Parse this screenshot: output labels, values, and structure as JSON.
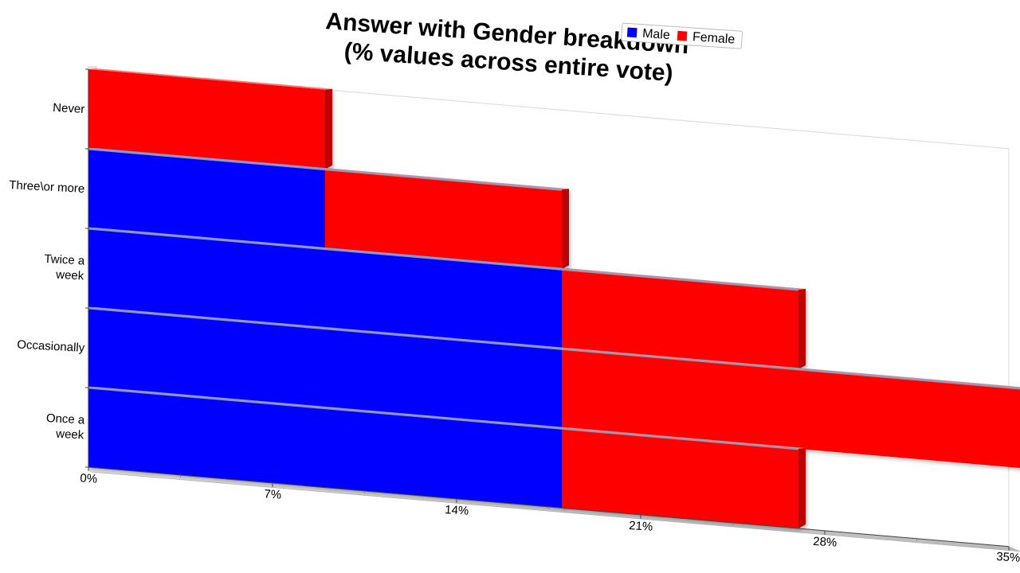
{
  "chart_data": {
    "type": "bar",
    "orientation": "horizontal",
    "stacked": true,
    "title": "Answer with Gender breakdown\n(% values across entire vote)",
    "categories": [
      "Never",
      "Three\\or more",
      "Twice a\nweek",
      "Occasionally",
      "Once a\nweek"
    ],
    "series": [
      {
        "name": "Male",
        "color": "#0000ff",
        "values": [
          0,
          9,
          18,
          18,
          18
        ]
      },
      {
        "name": "Female",
        "color": "#ff0000",
        "values": [
          9,
          9,
          9,
          18,
          9
        ]
      }
    ],
    "x_ticks": [
      "0%",
      "7%",
      "14%",
      "21%",
      "28%",
      "35%"
    ],
    "xlim": [
      0,
      35
    ],
    "legend": "top-right",
    "grid": false
  }
}
